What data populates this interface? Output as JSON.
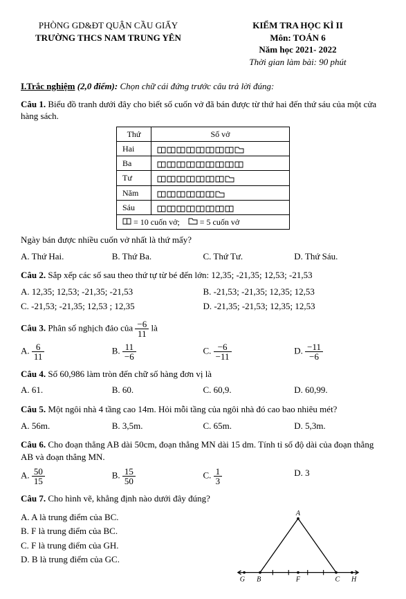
{
  "header": {
    "dept": "PHÒNG GD&ĐT QUẬN CẦU GIẤY",
    "school": "TRƯỜNG THCS NAM TRUNG YÊN",
    "exam": "KIỂM TRA HỌC KÌ II",
    "subject": "Môn: TOÁN 6",
    "year": "Năm học 2021- 2022",
    "time": "Thời gian làm bài: 90 phút"
  },
  "section1": {
    "title_num": "I.Trắc nghiệm",
    "title_pts": "(2,0 điểm):",
    "title_instr": "Chọn chữ cái đứng trước câu trả lời đúng:"
  },
  "q1": {
    "label": "Câu 1.",
    "text": "Biểu đồ tranh dưới đây cho biết số cuốn vở đã bán được từ thứ hai đến thứ sáu của một cửa hàng sách.",
    "table": {
      "col1": "Thứ",
      "col2": "Số vở",
      "rows": [
        {
          "day": "Hai",
          "books": 8,
          "folders": 1
        },
        {
          "day": "Ba",
          "books": 9,
          "folders": 0
        },
        {
          "day": "Tư",
          "books": 7,
          "folders": 1
        },
        {
          "day": "Năm",
          "books": 6,
          "folders": 1
        },
        {
          "day": "Sáu",
          "books": 8,
          "folders": 0
        }
      ],
      "legend_book": "= 10 cuốn vở;",
      "legend_folder": "= 5 cuốn vở"
    },
    "sub": "Ngày bán được nhiều cuốn vở nhất là thứ mấy?",
    "opts": [
      "A. Thứ Hai.",
      "B. Thứ Ba.",
      "C. Thứ Tư.",
      "D. Thứ Sáu."
    ]
  },
  "q2": {
    "label": "Câu 2.",
    "text": "Sắp xếp các số sau theo thứ tự từ bé đến lớn: 12,35; -21,35; 12,53; -21,53",
    "opts": [
      "A. 12,35; 12,53; -21,35; -21,53",
      "B. -21,53; -21,35; 12,35; 12,53",
      "C. -21,53; -21,35; 12,53 ; 12,35",
      "D. -21,35; -21,53; 12,35; 12,53"
    ]
  },
  "q3": {
    "label": "Câu 3.",
    "pre": "Phân số nghịch đảo của",
    "frac": {
      "num": "−6",
      "den": "11"
    },
    "post": "là",
    "opts": [
      {
        "l": "A.",
        "num": "6",
        "den": "11"
      },
      {
        "l": "B.",
        "num": "11",
        "den": "−6"
      },
      {
        "l": "C.",
        "num": "−6",
        "den": "−11"
      },
      {
        "l": "D.",
        "num": "−11",
        "den": "−6"
      }
    ]
  },
  "q4": {
    "label": "Câu 4.",
    "text": "Số 60,986 làm tròn đến chữ số hàng đơn vị là",
    "opts": [
      "A. 61.",
      "B. 60.",
      "C. 60,9.",
      "D. 60,99."
    ]
  },
  "q5": {
    "label": "Câu 5.",
    "text": "Một ngôi nhà 4 tầng cao 14m. Hỏi mỗi tầng của ngôi nhà đó cao bao nhiêu mét?",
    "opts": [
      "A. 56m.",
      "B. 3,5m.",
      "C. 65m.",
      "D. 5,3m."
    ]
  },
  "q6": {
    "label": "Câu 6.",
    "text": "Cho đoạn thẳng AB dài 50cm, đoạn thẳng MN dài 15 dm. Tính tỉ số độ dài của đoạn thẳng AB và đoạn thẳng MN.",
    "opts": [
      {
        "l": "A.",
        "num": "50",
        "den": "15"
      },
      {
        "l": "B.",
        "num": "15",
        "den": "50"
      },
      {
        "l": "C.",
        "num": "1",
        "den": "3"
      },
      {
        "l": "D. 3"
      }
    ]
  },
  "q7": {
    "label": "Câu 7.",
    "text": "Cho hình vẽ, khẳng định nào dưới đây đúng?",
    "opts": [
      "A. A là trung điểm của BC.",
      "B. F là trung điểm của BC.",
      "C. F là trung điểm của GH.",
      "D. B là trung điểm của GC."
    ],
    "labels": {
      "A": "A",
      "B": "B",
      "C": "C",
      "G": "G",
      "F": "F",
      "H": "H"
    }
  }
}
